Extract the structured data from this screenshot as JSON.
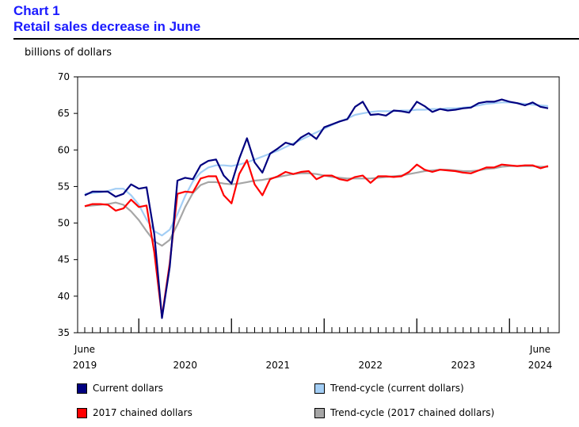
{
  "header": {
    "chart_number": "Chart 1",
    "title": "Retail sales decrease in June"
  },
  "chart_data": {
    "type": "line",
    "ylabel": "billions of dollars",
    "ylim": [
      35,
      70
    ],
    "yticks": [
      35,
      40,
      45,
      50,
      55,
      60,
      65,
      70
    ],
    "grid": false,
    "legend_placement": "bottom",
    "x_start_label": {
      "month": "June",
      "year": "2019"
    },
    "x_end_label": {
      "month": "June",
      "year": "2024"
    },
    "year_labels": [
      "2020",
      "2021",
      "2022",
      "2023"
    ],
    "x_start": "2019-06",
    "series": [
      {
        "name": "Current dollars",
        "color": "#000080",
        "values": [
          53.8,
          54.3,
          54.3,
          54.3,
          53.6,
          54.0,
          55.3,
          54.7,
          54.9,
          48.5,
          37.0,
          44.0,
          55.8,
          56.2,
          56.0,
          57.9,
          58.5,
          58.7,
          56.5,
          55.4,
          58.8,
          61.6,
          58.3,
          56.9,
          59.5,
          60.2,
          61.0,
          60.7,
          61.7,
          62.3,
          61.5,
          63.1,
          63.5,
          63.9,
          64.2,
          65.9,
          66.6,
          64.8,
          64.9,
          64.7,
          65.4,
          65.3,
          65.1,
          66.6,
          66.0,
          65.2,
          65.6,
          65.4,
          65.5,
          65.7,
          65.8,
          66.4,
          66.6,
          66.6,
          66.9,
          66.6,
          66.4,
          66.1,
          66.5,
          65.9,
          65.7
        ]
      },
      {
        "name": "Trend-cycle (current dollars)",
        "color": "#a3cef5",
        "values": [
          54.0,
          54.1,
          54.2,
          54.4,
          54.7,
          54.7,
          53.8,
          52.5,
          50.5,
          48.9,
          48.3,
          49.1,
          51.2,
          53.7,
          55.7,
          56.9,
          57.6,
          57.9,
          57.9,
          57.8,
          58.0,
          58.3,
          58.7,
          59.1,
          59.5,
          59.9,
          60.4,
          60.9,
          61.4,
          61.9,
          62.4,
          62.9,
          63.4,
          63.9,
          64.3,
          64.8,
          65.0,
          65.2,
          65.3,
          65.3,
          65.3,
          65.4,
          65.4,
          65.5,
          65.5,
          65.6,
          65.6,
          65.7,
          65.7,
          65.8,
          65.9,
          66.1,
          66.3,
          66.4,
          66.5,
          66.5,
          66.4,
          66.3,
          66.2,
          66.1,
          66.0
        ]
      },
      {
        "name": "2017 chained dollars",
        "color": "#ff0000",
        "values": [
          52.3,
          52.6,
          52.6,
          52.5,
          51.7,
          52.0,
          53.2,
          52.2,
          52.4,
          46.0,
          37.2,
          44.5,
          54.0,
          54.3,
          54.2,
          56.1,
          56.4,
          56.4,
          53.8,
          52.7,
          56.7,
          58.6,
          55.3,
          53.8,
          56.0,
          56.4,
          57.0,
          56.7,
          57.0,
          57.1,
          56.0,
          56.5,
          56.5,
          56.0,
          55.8,
          56.3,
          56.5,
          55.5,
          56.4,
          56.4,
          56.3,
          56.4,
          57.0,
          58.0,
          57.3,
          57.0,
          57.3,
          57.2,
          57.1,
          56.9,
          56.8,
          57.2,
          57.6,
          57.6,
          58.0,
          57.9,
          57.8,
          57.9,
          57.9,
          57.5,
          57.8
        ]
      },
      {
        "name": "Trend-cycle (2017 chained dollars)",
        "color": "#a6a6a6",
        "values": [
          52.3,
          52.4,
          52.5,
          52.6,
          52.8,
          52.5,
          51.6,
          50.4,
          48.9,
          47.5,
          46.9,
          47.7,
          49.8,
          52.2,
          54.1,
          55.2,
          55.6,
          55.6,
          55.4,
          55.3,
          55.4,
          55.6,
          55.8,
          55.9,
          56.1,
          56.3,
          56.5,
          56.7,
          56.8,
          56.8,
          56.7,
          56.5,
          56.3,
          56.2,
          56.1,
          56.1,
          56.1,
          56.1,
          56.2,
          56.3,
          56.4,
          56.5,
          56.7,
          56.9,
          57.1,
          57.2,
          57.3,
          57.3,
          57.2,
          57.1,
          57.1,
          57.2,
          57.4,
          57.5,
          57.7,
          57.8,
          57.8,
          57.8,
          57.8,
          57.7,
          57.7
        ]
      }
    ]
  }
}
